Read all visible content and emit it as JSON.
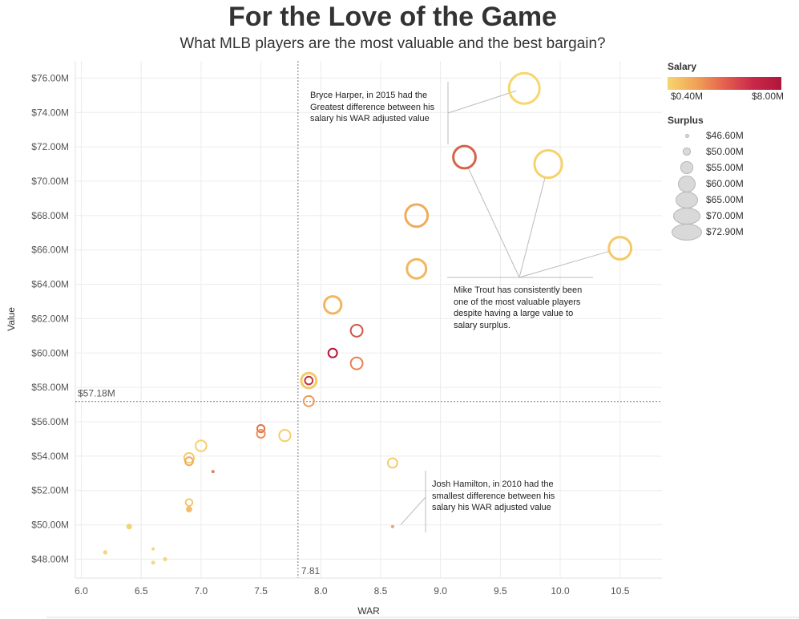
{
  "header": {
    "title": "For the Love of the Game",
    "subtitle": "What MLB players are the most valuable and the best bargain?"
  },
  "annotations": {
    "harper": "Bryce Harper, in 2015 had the Greatest difference between his salary his WAR adjusted value",
    "trout": "Mike Trout has consistently been one of the most valuable players despite having a large value to salary surplus.",
    "hamilton": "Josh Hamilton, in 2010 had the smallest difference between his salary his WAR adjusted value"
  },
  "legend": {
    "salary_title": "Salary",
    "salary_min": "$0.40M",
    "salary_max": "$8.00M",
    "surplus_title": "Surplus",
    "surplus_items": [
      "$46.60M",
      "$50.00M",
      "$55.00M",
      "$60.00M",
      "$65.00M",
      "$70.00M",
      "$72.90M"
    ]
  },
  "colors": {
    "low": "#f6d66d",
    "mid": "#ec8a52",
    "high": "#b0163a"
  },
  "chart_data": {
    "type": "scatter",
    "title": "For the Love of the Game",
    "subtitle": "What MLB players are the most valuable and the best bargain?",
    "xlabel": "WAR",
    "ylabel": "Value",
    "xlim": [
      5.95,
      10.85
    ],
    "ylim": [
      46.9,
      77.0
    ],
    "x_ticks": [
      6.0,
      6.5,
      7.0,
      7.5,
      8.0,
      8.5,
      9.0,
      9.5,
      10.0,
      10.5
    ],
    "x_tick_labels": [
      "6.0",
      "6.5",
      "7.0",
      "7.5",
      "8.0",
      "8.5",
      "9.0",
      "9.5",
      "10.0",
      "10.5"
    ],
    "y_ticks": [
      48,
      50,
      52,
      54,
      56,
      58,
      60,
      62,
      64,
      66,
      68,
      70,
      72,
      74,
      76
    ],
    "y_tick_labels": [
      "$48.00M",
      "$50.00M",
      "$52.00M",
      "$54.00M",
      "$56.00M",
      "$58.00M",
      "$60.00M",
      "$62.00M",
      "$64.00M",
      "$66.00M",
      "$68.00M",
      "$70.00M",
      "$72.00M",
      "$74.00M",
      "$76.00M"
    ],
    "reference_lines": {
      "x": 7.81,
      "x_label": "7.81",
      "y": 57.18,
      "y_label": "$57.18M"
    },
    "grid": true,
    "size_encoding": "Surplus",
    "color_encoding": "Salary",
    "points": [
      {
        "war": 9.7,
        "value": 75.4,
        "salary": 0.4,
        "surplus": 72.9
      },
      {
        "war": 9.2,
        "value": 71.4,
        "salary": 5.5,
        "surplus": 65.0
      },
      {
        "war": 9.9,
        "value": 71.0,
        "salary": 0.6,
        "surplus": 70.0
      },
      {
        "war": 8.8,
        "value": 68.0,
        "salary": 2.5,
        "surplus": 65.0
      },
      {
        "war": 10.5,
        "value": 66.1,
        "salary": 1.0,
        "surplus": 65.0
      },
      {
        "war": 8.8,
        "value": 64.9,
        "salary": 2.0,
        "surplus": 62.0
      },
      {
        "war": 8.1,
        "value": 62.8,
        "salary": 2.0,
        "surplus": 60.0
      },
      {
        "war": 8.3,
        "value": 61.3,
        "salary": 6.0,
        "surplus": 55.0
      },
      {
        "war": 8.1,
        "value": 60.0,
        "salary": 8.0,
        "surplus": 52.0
      },
      {
        "war": 8.3,
        "value": 59.4,
        "salary": 4.5,
        "surplus": 55.0
      },
      {
        "war": 7.9,
        "value": 58.4,
        "salary": 1.0,
        "surplus": 58.0
      },
      {
        "war": 7.9,
        "value": 58.4,
        "salary": 7.0,
        "surplus": 51.0
      },
      {
        "war": 7.9,
        "value": 57.2,
        "salary": 3.5,
        "surplus": 53.5
      },
      {
        "war": 7.5,
        "value": 55.6,
        "salary": 5.0,
        "surplus": 50.6
      },
      {
        "war": 7.5,
        "value": 55.3,
        "salary": 4.0,
        "surplus": 51.3
      },
      {
        "war": 7.7,
        "value": 55.2,
        "salary": 0.8,
        "surplus": 54.5
      },
      {
        "war": 7.0,
        "value": 54.6,
        "salary": 0.7,
        "surplus": 54.0
      },
      {
        "war": 6.9,
        "value": 53.9,
        "salary": 0.8,
        "surplus": 53.0
      },
      {
        "war": 6.9,
        "value": 53.7,
        "salary": 2.5,
        "surplus": 51.2
      },
      {
        "war": 8.6,
        "value": 53.6,
        "salary": 0.9,
        "surplus": 52.7
      },
      {
        "war": 7.1,
        "value": 53.1,
        "salary": 5.0,
        "surplus": 46.6
      },
      {
        "war": 6.9,
        "value": 51.3,
        "salary": 1.2,
        "surplus": 50.1
      },
      {
        "war": 6.9,
        "value": 50.9,
        "salary": 2.0,
        "surplus": 49.5
      },
      {
        "war": 6.4,
        "value": 49.9,
        "salary": 0.9,
        "surplus": 49.0
      },
      {
        "war": 8.6,
        "value": 49.9,
        "salary": 3.5,
        "surplus": 46.6
      },
      {
        "war": 6.6,
        "value": 48.6,
        "salary": 0.6,
        "surplus": 46.6
      },
      {
        "war": 6.2,
        "value": 48.4,
        "salary": 0.7,
        "surplus": 47.7
      },
      {
        "war": 6.7,
        "value": 48.0,
        "salary": 0.6,
        "surplus": 47.4
      },
      {
        "war": 6.6,
        "value": 47.8,
        "salary": 0.5,
        "surplus": 47.3
      }
    ]
  }
}
